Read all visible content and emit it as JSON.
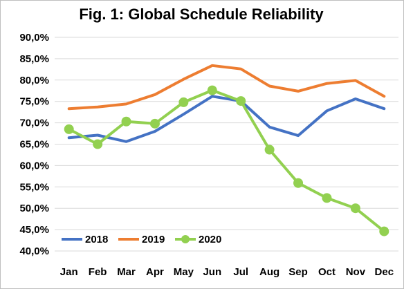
{
  "chart_data": {
    "type": "line",
    "title": "Fig. 1: Global Schedule Reliability",
    "xlabel": "",
    "ylabel": "",
    "categories": [
      "Jan",
      "Feb",
      "Mar",
      "Apr",
      "May",
      "Jun",
      "Jul",
      "Aug",
      "Sep",
      "Oct",
      "Nov",
      "Dec"
    ],
    "ylim": [
      40,
      90
    ],
    "yticks": [
      40,
      45,
      50,
      55,
      60,
      65,
      70,
      75,
      80,
      85,
      90
    ],
    "ytick_labels": [
      "40,0%",
      "45,0%",
      "50,0%",
      "55,0%",
      "60,0%",
      "65,0%",
      "70,0%",
      "75,0%",
      "80,0%",
      "85,0%",
      "90,0%"
    ],
    "grid": "horizontal",
    "legend_position": "bottom-left",
    "series": [
      {
        "name": "2018",
        "color": "#4472c4",
        "markers": false,
        "values": [
          66.5,
          67.1,
          65.6,
          68.0,
          72.0,
          76.2,
          75.1,
          69.0,
          67.0,
          72.8,
          75.6,
          73.3
        ]
      },
      {
        "name": "2019",
        "color": "#ed7d31",
        "markers": false,
        "values": [
          73.3,
          73.7,
          74.4,
          76.6,
          80.2,
          83.4,
          82.6,
          78.6,
          77.4,
          79.2,
          79.9,
          76.2
        ]
      },
      {
        "name": "2020",
        "color": "#92d050",
        "markers": true,
        "values": [
          68.5,
          65.0,
          70.3,
          69.8,
          74.8,
          77.6,
          75.1,
          63.7,
          55.9,
          52.4,
          50.0,
          44.6
        ]
      }
    ]
  }
}
